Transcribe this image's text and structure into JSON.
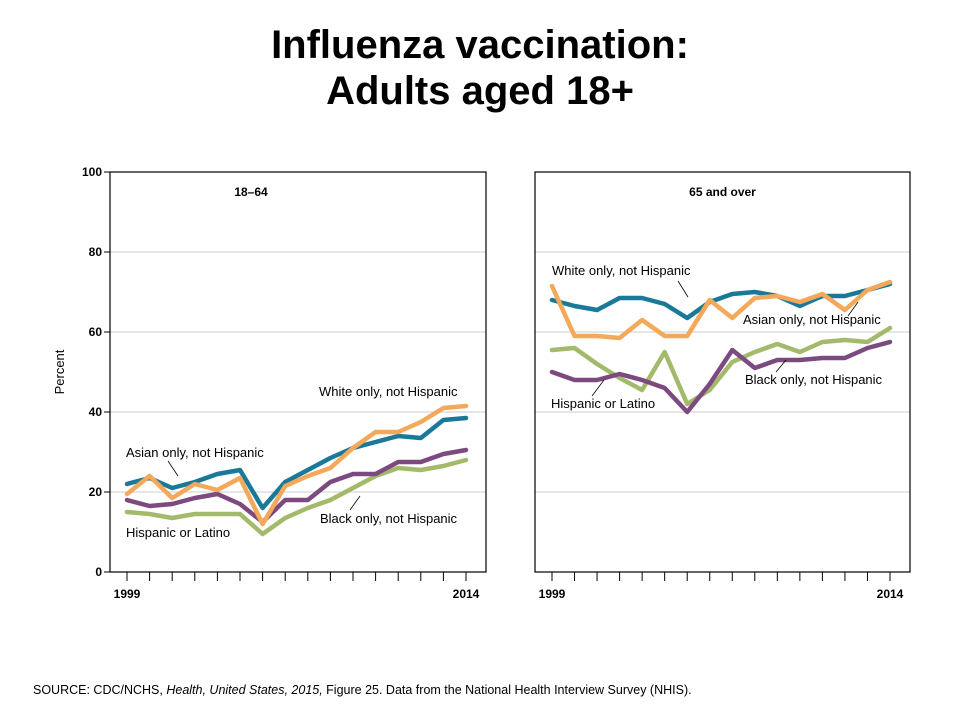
{
  "title_line1": "Influenza vaccination:",
  "title_line2": "Adults aged 18+",
  "source": {
    "prefix": "SOURCE: CDC/NCHS, ",
    "italic1": "Health, United States, 2015,",
    "middle": " Figure 25. Data from the National Health Interview Survey (NHIS)."
  },
  "colors": {
    "white": "#1a7899",
    "asian": "#f4a859",
    "black": "#7d4a80",
    "hispanic": "#a3ba6b"
  },
  "chart_data": [
    {
      "type": "line",
      "title": "18–64",
      "ylabel": "Percent",
      "ylim": [
        0,
        100
      ],
      "yticks": [
        0,
        20,
        40,
        60,
        80,
        100
      ],
      "x": [
        1999,
        2000,
        2001,
        2002,
        2003,
        2004,
        2005,
        2006,
        2007,
        2008,
        2009,
        2010,
        2011,
        2012,
        2013,
        2014
      ],
      "xtick_labels": [
        "1999",
        "2014"
      ],
      "grid": true,
      "series": [
        {
          "name": "White only, not Hispanic",
          "color_key": "white",
          "values": [
            22,
            23.5,
            21,
            22.5,
            24.5,
            25.5,
            16,
            22.5,
            25.5,
            28.5,
            31,
            32.5,
            34,
            33.5,
            38,
            38.5
          ]
        },
        {
          "name": "Asian only, not Hispanic",
          "color_key": "asian",
          "values": [
            19.5,
            24,
            18.5,
            22,
            20.5,
            23.5,
            12,
            21.5,
            24,
            26,
            31,
            35,
            35,
            37.5,
            41,
            41.5
          ]
        },
        {
          "name": "Black only, not Hispanic",
          "color_key": "black",
          "values": [
            18,
            16.5,
            17,
            18.5,
            19.5,
            17,
            12.5,
            18,
            18,
            22.5,
            24.5,
            24.5,
            27.5,
            27.5,
            29.5,
            30.5
          ]
        },
        {
          "name": "Hispanic or Latino",
          "color_key": "hispanic",
          "values": [
            15,
            14.5,
            13.5,
            14.5,
            14.5,
            14.5,
            9.5,
            13.5,
            16,
            18,
            21,
            24,
            26,
            25.5,
            26.5,
            28
          ]
        }
      ]
    },
    {
      "type": "line",
      "title": "65 and over",
      "ylim": [
        0,
        100
      ],
      "yticks": [
        0,
        20,
        40,
        60,
        80,
        100
      ],
      "x": [
        1999,
        2000,
        2001,
        2002,
        2003,
        2004,
        2005,
        2006,
        2007,
        2008,
        2009,
        2010,
        2011,
        2012,
        2013,
        2014
      ],
      "xtick_labels": [
        "1999",
        "2014"
      ],
      "grid": true,
      "series": [
        {
          "name": "White only, not Hispanic",
          "color_key": "white",
          "values": [
            68,
            66.5,
            65.5,
            68.5,
            68.5,
            67,
            63.5,
            67.5,
            69.5,
            70,
            69,
            66.5,
            69,
            69,
            70.5,
            72
          ]
        },
        {
          "name": "Asian only, not Hispanic",
          "color_key": "asian",
          "values": [
            71.5,
            59,
            59,
            58.5,
            63,
            59,
            59,
            68,
            63.5,
            68.5,
            69,
            67.5,
            69.5,
            65.5,
            70.5,
            72.5
          ]
        },
        {
          "name": "Black only, not Hispanic",
          "color_key": "black",
          "values": [
            50,
            48,
            48,
            49.5,
            48,
            46,
            40,
            47,
            55.5,
            51,
            53,
            53,
            53.5,
            53.5,
            56,
            57.5
          ]
        },
        {
          "name": "Hispanic or Latino",
          "color_key": "hispanic",
          "values": [
            55.5,
            56,
            52,
            48.5,
            45.5,
            55,
            42,
            45.5,
            52.5,
            55,
            57,
            55,
            57.5,
            58,
            57.5,
            61
          ]
        }
      ]
    }
  ],
  "annotations": [
    {
      "text": "White only, not Hispanic",
      "panel": 0
    },
    {
      "text": "Asian only, not Hispanic",
      "panel": 0
    },
    {
      "text": "Black only, not Hispanic",
      "panel": 0
    },
    {
      "text": "Hispanic or Latino",
      "panel": 0
    },
    {
      "text": "White only, not Hispanic",
      "panel": 1
    },
    {
      "text": "Asian only, not Hispanic",
      "panel": 1
    },
    {
      "text": "Black only, not Hispanic",
      "panel": 1
    },
    {
      "text": "Hispanic or Latino",
      "panel": 1
    }
  ]
}
